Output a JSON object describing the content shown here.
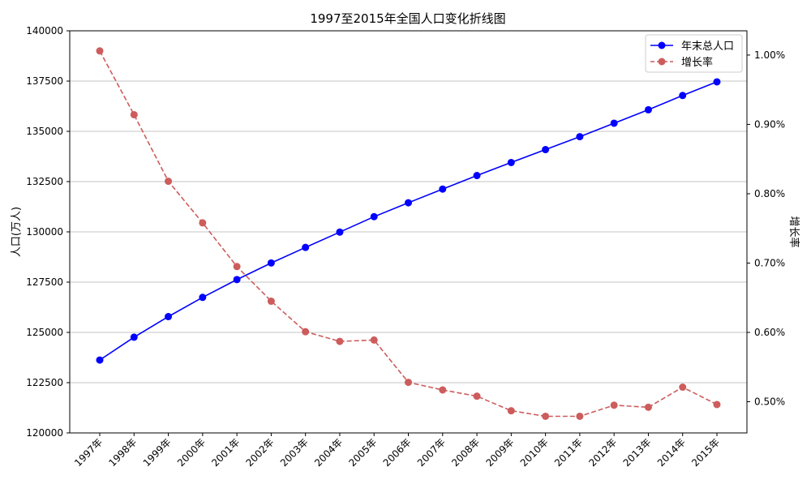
{
  "chart_data": {
    "type": "line",
    "title": "1997至2015年全国人口变化折线图",
    "categories": [
      "1997年",
      "1998年",
      "1999年",
      "2000年",
      "2001年",
      "2002年",
      "2003年",
      "2004年",
      "2005年",
      "2006年",
      "2007年",
      "2008年",
      "2009年",
      "2010年",
      "2011年",
      "2012年",
      "2013年",
      "2014年",
      "2015年"
    ],
    "left_axis": {
      "label": "人口(万人)",
      "ylim": [
        120000,
        140000
      ],
      "ticks": [
        120000,
        122500,
        125000,
        127500,
        130000,
        132500,
        135000,
        137500,
        140000
      ],
      "tick_labels": [
        "120000",
        "122500",
        "125000",
        "127500",
        "130000",
        "132500",
        "135000",
        "137500",
        "140000"
      ]
    },
    "right_axis": {
      "label": "增长率",
      "ylim": [
        0.455,
        1.035
      ],
      "ticks": [
        0.5,
        0.6,
        0.7,
        0.8,
        0.9,
        1.0
      ],
      "tick_labels": [
        "0.50%",
        "0.60%",
        "0.70%",
        "0.80%",
        "0.90%",
        "1.00%"
      ]
    },
    "grid": "horizontal",
    "legend_position": "top-right",
    "series": [
      {
        "name": "年末总人口",
        "axis": "left",
        "color": "#0000ff",
        "style": "solid",
        "values": [
          123626,
          124761,
          125786,
          126743,
          127627,
          128453,
          129227,
          129988,
          130756,
          131448,
          132129,
          132802,
          133450,
          134091,
          134735,
          135404,
          136072,
          136782,
          137462
        ]
      },
      {
        "name": "增长率",
        "axis": "right",
        "color": "#cd5c5c",
        "style": "dashed",
        "values": [
          1.006,
          0.914,
          0.818,
          0.758,
          0.695,
          0.645,
          0.601,
          0.587,
          0.589,
          0.528,
          0.517,
          0.508,
          0.487,
          0.479,
          0.479,
          0.495,
          0.492,
          0.521,
          0.496
        ]
      }
    ]
  }
}
